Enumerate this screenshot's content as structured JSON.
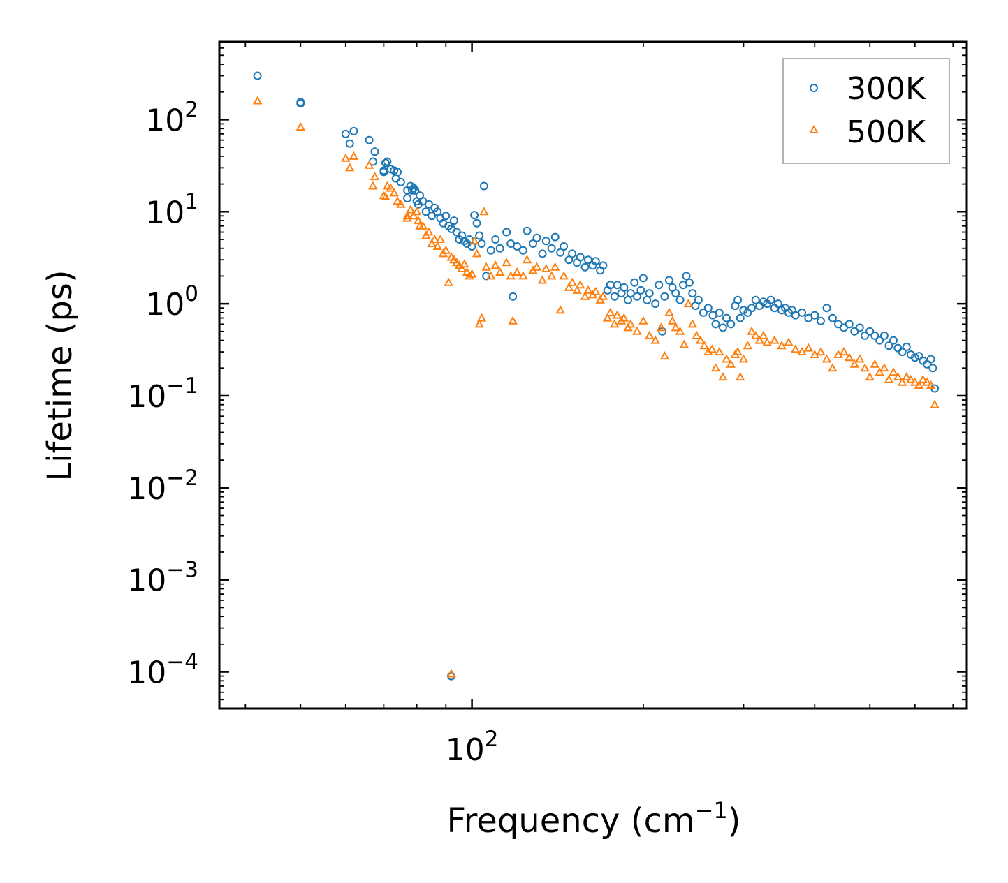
{
  "chart_data": {
    "type": "scatter",
    "title": "",
    "xlabel": "Frequency (cm",
    "xlabel_sup": "−1",
    "xlabel_end": ")",
    "ylabel": "Lifetime (ps)",
    "x_scale": "log",
    "y_scale": "log",
    "xlim": [
      36,
      740
    ],
    "ylim": [
      4e-05,
      700
    ],
    "x_ticks": [
      {
        "base": "10",
        "exp": "2",
        "value": 100
      }
    ],
    "y_ticks": [
      {
        "base": "10",
        "exp": "2",
        "value": 100
      },
      {
        "base": "10",
        "exp": "1",
        "value": 10
      },
      {
        "base": "10",
        "exp": "0",
        "value": 1
      },
      {
        "base": "10",
        "exp": "−1",
        "value": 0.1
      },
      {
        "base": "10",
        "exp": "−2",
        "value": 0.01
      },
      {
        "base": "10",
        "exp": "−3",
        "value": 0.001
      },
      {
        "base": "10",
        "exp": "−4",
        "value": 0.0001
      }
    ],
    "grid": false,
    "legend_position": "top-right",
    "series": [
      {
        "name": "300K",
        "color": "#1f77b4",
        "marker": "circle",
        "points": [
          [
            42,
            300
          ],
          [
            50,
            155
          ],
          [
            50,
            150
          ],
          [
            60,
            70
          ],
          [
            61,
            55
          ],
          [
            62,
            75
          ],
          [
            66,
            60
          ],
          [
            67,
            35
          ],
          [
            67.5,
            45
          ],
          [
            70,
            27
          ],
          [
            70,
            28
          ],
          [
            70.5,
            34
          ],
          [
            71,
            35
          ],
          [
            72,
            29
          ],
          [
            73,
            28
          ],
          [
            73.5,
            23
          ],
          [
            74,
            27
          ],
          [
            75,
            21
          ],
          [
            77,
            17
          ],
          [
            77,
            14
          ],
          [
            78,
            19
          ],
          [
            78.5,
            17
          ],
          [
            79,
            18
          ],
          [
            79.5,
            17
          ],
          [
            80,
            13
          ],
          [
            80.5,
            12
          ],
          [
            81,
            15
          ],
          [
            82,
            13
          ],
          [
            83,
            10
          ],
          [
            84,
            12
          ],
          [
            85,
            9
          ],
          [
            86,
            11
          ],
          [
            87,
            10
          ],
          [
            88,
            8.5
          ],
          [
            89,
            7.5
          ],
          [
            90,
            9
          ],
          [
            91,
            7
          ],
          [
            92,
            6.5
          ],
          [
            93,
            8
          ],
          [
            94,
            6
          ],
          [
            95,
            5
          ],
          [
            96,
            5.5
          ],
          [
            97,
            4.8
          ],
          [
            98,
            4.5
          ],
          [
            99,
            5
          ],
          [
            100,
            4.2
          ],
          [
            101,
            9.2
          ],
          [
            102,
            7.5
          ],
          [
            103,
            5.5
          ],
          [
            104,
            4.5
          ],
          [
            105,
            19
          ],
          [
            106,
            2
          ],
          [
            108,
            3.8
          ],
          [
            110,
            5
          ],
          [
            112,
            4
          ],
          [
            115,
            6
          ],
          [
            117,
            4.5
          ],
          [
            118,
            1.2
          ],
          [
            120,
            4.2
          ],
          [
            123,
            3.8
          ],
          [
            125,
            6.2
          ],
          [
            128,
            4.5
          ],
          [
            130,
            5.2
          ],
          [
            133,
            3.5
          ],
          [
            135,
            4.8
          ],
          [
            138,
            4
          ],
          [
            140,
            5.3
          ],
          [
            143,
            3.6
          ],
          [
            145,
            4.2
          ],
          [
            148,
            3
          ],
          [
            150,
            3.5
          ],
          [
            153,
            2.8
          ],
          [
            155,
            3.2
          ],
          [
            158,
            2.5
          ],
          [
            160,
            3
          ],
          [
            163,
            2.6
          ],
          [
            165,
            2.9
          ],
          [
            168,
            2.3
          ],
          [
            170,
            2.6
          ],
          [
            173,
            1.4
          ],
          [
            175,
            1.6
          ],
          [
            178,
            1.2
          ],
          [
            180,
            1.6
          ],
          [
            183,
            1.3
          ],
          [
            185,
            1.5
          ],
          [
            188,
            1.1
          ],
          [
            190,
            1.3
          ],
          [
            193,
            1.7
          ],
          [
            195,
            1.2
          ],
          [
            198,
            1.4
          ],
          [
            200,
            1.9
          ],
          [
            203,
            1.1
          ],
          [
            205,
            1.3
          ],
          [
            210,
            1.0
          ],
          [
            213,
            1.6
          ],
          [
            216,
            0.5
          ],
          [
            218,
            1.2
          ],
          [
            222,
            1.8
          ],
          [
            225,
            1.5
          ],
          [
            228,
            1.3
          ],
          [
            232,
            1.1
          ],
          [
            235,
            1.6
          ],
          [
            238,
            2.0
          ],
          [
            241,
            1.7
          ],
          [
            244,
            1.3
          ],
          [
            247,
            0.95
          ],
          [
            250,
            1.1
          ],
          [
            255,
            0.8
          ],
          [
            260,
            0.9
          ],
          [
            265,
            0.75
          ],
          [
            268,
            0.6
          ],
          [
            272,
            0.8
          ],
          [
            276,
            0.55
          ],
          [
            280,
            0.7
          ],
          [
            285,
            0.6
          ],
          [
            290,
            0.95
          ],
          [
            293,
            1.1
          ],
          [
            296,
            0.7
          ],
          [
            300,
            0.85
          ],
          [
            305,
            0.8
          ],
          [
            310,
            0.9
          ],
          [
            315,
            1.1
          ],
          [
            320,
            0.95
          ],
          [
            325,
            1.05
          ],
          [
            330,
            1.0
          ],
          [
            335,
            1.1
          ],
          [
            340,
            0.9
          ],
          [
            345,
            1.0
          ],
          [
            350,
            0.85
          ],
          [
            355,
            0.9
          ],
          [
            360,
            0.8
          ],
          [
            365,
            0.85
          ],
          [
            370,
            0.75
          ],
          [
            380,
            0.8
          ],
          [
            390,
            0.7
          ],
          [
            400,
            0.75
          ],
          [
            410,
            0.65
          ],
          [
            420,
            0.9
          ],
          [
            430,
            0.7
          ],
          [
            440,
            0.6
          ],
          [
            450,
            0.55
          ],
          [
            460,
            0.6
          ],
          [
            470,
            0.5
          ],
          [
            480,
            0.55
          ],
          [
            490,
            0.45
          ],
          [
            500,
            0.5
          ],
          [
            510,
            0.45
          ],
          [
            520,
            0.4
          ],
          [
            530,
            0.45
          ],
          [
            540,
            0.35
          ],
          [
            550,
            0.4
          ],
          [
            560,
            0.33
          ],
          [
            570,
            0.3
          ],
          [
            580,
            0.34
          ],
          [
            590,
            0.28
          ],
          [
            600,
            0.26
          ],
          [
            610,
            0.27
          ],
          [
            620,
            0.24
          ],
          [
            630,
            0.22
          ],
          [
            640,
            0.25
          ],
          [
            645,
            0.2
          ],
          [
            650,
            0.12
          ],
          [
            92,
            9e-05
          ]
        ]
      },
      {
        "name": "500K",
        "color": "#ff7f0e",
        "marker": "triangle",
        "points": [
          [
            42,
            160
          ],
          [
            50,
            83
          ],
          [
            60,
            38
          ],
          [
            61,
            30
          ],
          [
            62,
            40
          ],
          [
            66,
            32
          ],
          [
            67.5,
            24
          ],
          [
            67,
            19
          ],
          [
            70,
            15
          ],
          [
            70.5,
            14.5
          ],
          [
            71,
            19
          ],
          [
            72,
            18
          ],
          [
            73,
            16
          ],
          [
            74,
            13
          ],
          [
            75,
            12
          ],
          [
            77,
            9
          ],
          [
            77,
            8.5
          ],
          [
            78,
            10.5
          ],
          [
            79,
            9
          ],
          [
            80,
            10
          ],
          [
            80.5,
            8
          ],
          [
            81,
            7
          ],
          [
            82,
            7
          ],
          [
            83,
            5.5
          ],
          [
            84,
            6
          ],
          [
            85,
            4.5
          ],
          [
            86,
            5
          ],
          [
            87,
            4.2
          ],
          [
            88,
            5
          ],
          [
            89,
            3.5
          ],
          [
            90,
            3.8
          ],
          [
            91,
            1.7
          ],
          [
            92,
            3.2
          ],
          [
            93,
            3
          ],
          [
            94,
            2.8
          ],
          [
            95,
            2.6
          ],
          [
            96,
            2.4
          ],
          [
            97,
            2.7
          ],
          [
            98,
            2.2
          ],
          [
            99,
            2
          ],
          [
            100,
            2.1
          ],
          [
            101,
            4.8
          ],
          [
            102,
            3.5
          ],
          [
            103,
            0.6
          ],
          [
            104,
            0.7
          ],
          [
            105,
            10
          ],
          [
            106,
            2.5
          ],
          [
            108,
            2
          ],
          [
            110,
            2.6
          ],
          [
            112,
            2.2
          ],
          [
            115,
            2.8
          ],
          [
            117,
            2
          ],
          [
            118,
            0.65
          ],
          [
            120,
            2.2
          ],
          [
            123,
            2
          ],
          [
            125,
            3
          ],
          [
            128,
            2.3
          ],
          [
            130,
            2.5
          ],
          [
            133,
            1.8
          ],
          [
            135,
            2.4
          ],
          [
            138,
            2
          ],
          [
            140,
            2.5
          ],
          [
            143,
            0.85
          ],
          [
            145,
            2
          ],
          [
            148,
            1.5
          ],
          [
            150,
            1.7
          ],
          [
            153,
            1.4
          ],
          [
            155,
            1.6
          ],
          [
            158,
            1.2
          ],
          [
            160,
            1.4
          ],
          [
            163,
            1.25
          ],
          [
            165,
            1.35
          ],
          [
            168,
            1.1
          ],
          [
            170,
            1.2
          ],
          [
            173,
            0.7
          ],
          [
            175,
            0.8
          ],
          [
            178,
            0.6
          ],
          [
            180,
            0.75
          ],
          [
            183,
            0.65
          ],
          [
            185,
            0.7
          ],
          [
            188,
            0.55
          ],
          [
            190,
            0.6
          ],
          [
            195,
            0.5
          ],
          [
            200,
            0.65
          ],
          [
            205,
            0.45
          ],
          [
            210,
            0.4
          ],
          [
            215,
            0.55
          ],
          [
            218,
            0.27
          ],
          [
            222,
            0.8
          ],
          [
            225,
            0.65
          ],
          [
            228,
            0.55
          ],
          [
            232,
            0.5
          ],
          [
            236,
            0.36
          ],
          [
            240,
            1.0
          ],
          [
            244,
            0.6
          ],
          [
            248,
            0.45
          ],
          [
            252,
            0.4
          ],
          [
            256,
            0.35
          ],
          [
            260,
            0.3
          ],
          [
            264,
            0.32
          ],
          [
            268,
            0.2
          ],
          [
            272,
            0.3
          ],
          [
            276,
            0.16
          ],
          [
            280,
            0.25
          ],
          [
            285,
            0.22
          ],
          [
            290,
            0.28
          ],
          [
            293,
            0.3
          ],
          [
            296,
            0.16
          ],
          [
            300,
            0.25
          ],
          [
            305,
            0.35
          ],
          [
            310,
            0.5
          ],
          [
            315,
            0.45
          ],
          [
            320,
            0.4
          ],
          [
            325,
            0.45
          ],
          [
            330,
            0.38
          ],
          [
            340,
            0.4
          ],
          [
            350,
            0.35
          ],
          [
            360,
            0.38
          ],
          [
            370,
            0.32
          ],
          [
            380,
            0.3
          ],
          [
            390,
            0.33
          ],
          [
            400,
            0.28
          ],
          [
            410,
            0.3
          ],
          [
            420,
            0.25
          ],
          [
            430,
            0.2
          ],
          [
            440,
            0.28
          ],
          [
            450,
            0.3
          ],
          [
            460,
            0.26
          ],
          [
            470,
            0.22
          ],
          [
            480,
            0.25
          ],
          [
            490,
            0.2
          ],
          [
            500,
            0.16
          ],
          [
            510,
            0.22
          ],
          [
            520,
            0.18
          ],
          [
            530,
            0.2
          ],
          [
            540,
            0.15
          ],
          [
            550,
            0.18
          ],
          [
            560,
            0.16
          ],
          [
            570,
            0.14
          ],
          [
            580,
            0.16
          ],
          [
            590,
            0.15
          ],
          [
            600,
            0.14
          ],
          [
            610,
            0.13
          ],
          [
            620,
            0.15
          ],
          [
            630,
            0.14
          ],
          [
            640,
            0.13
          ],
          [
            650,
            0.08
          ],
          [
            92,
            9.5e-05
          ]
        ]
      }
    ]
  }
}
